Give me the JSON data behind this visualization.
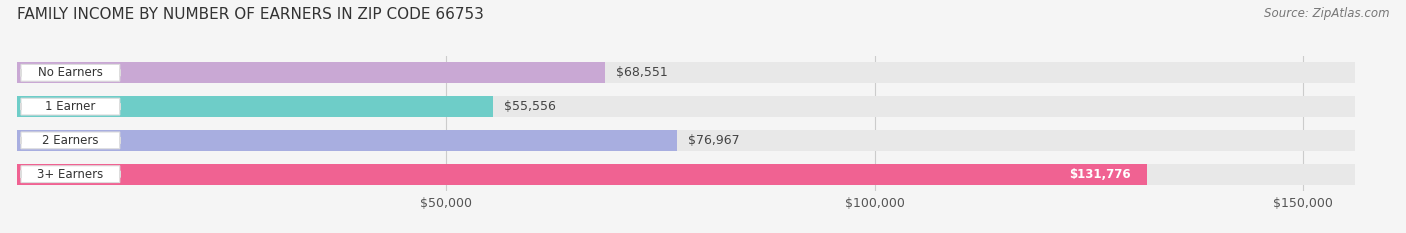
{
  "title": "FAMILY INCOME BY NUMBER OF EARNERS IN ZIP CODE 66753",
  "source": "Source: ZipAtlas.com",
  "categories": [
    "No Earners",
    "1 Earner",
    "2 Earners",
    "3+ Earners"
  ],
  "values": [
    68551,
    55556,
    76967,
    131776
  ],
  "bar_colors": [
    "#c9a8d4",
    "#6ecdc8",
    "#a8aee0",
    "#f06292"
  ],
  "value_labels": [
    "$68,551",
    "$55,556",
    "$76,967",
    "$131,776"
  ],
  "value_inside": [
    false,
    false,
    false,
    true
  ],
  "x_ticks": [
    50000,
    100000,
    150000
  ],
  "x_tick_labels": [
    "$50,000",
    "$100,000",
    "$150,000"
  ],
  "xlim_max": 160000,
  "background_color": "#f5f5f5",
  "bar_bg_color": "#e8e8e8",
  "title_fontsize": 11,
  "bar_height": 0.62,
  "figsize": [
    14.06,
    2.33
  ],
  "dpi": 100
}
